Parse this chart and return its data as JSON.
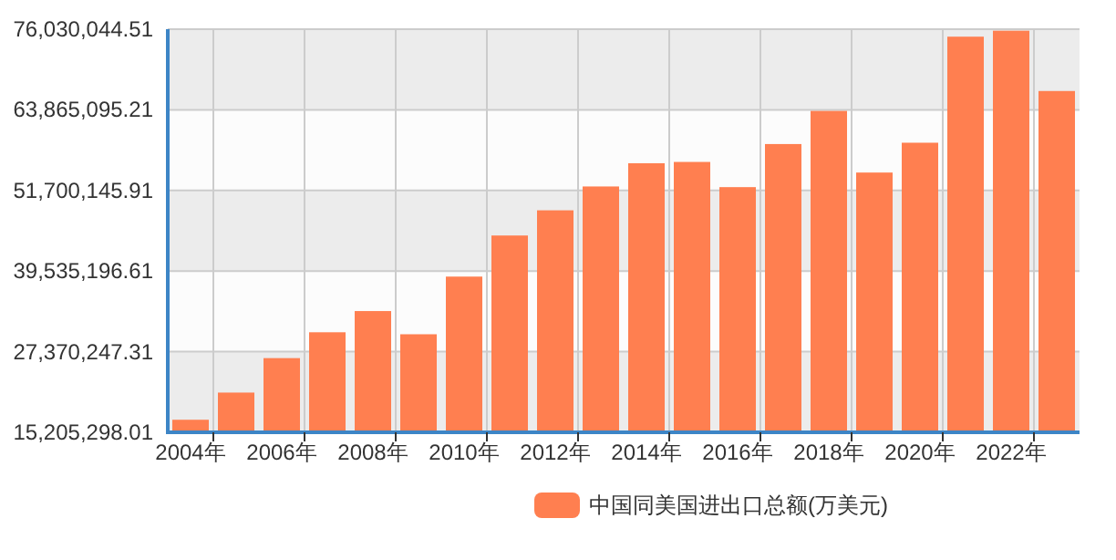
{
  "chart_data": {
    "type": "bar",
    "categories": [
      "2004年",
      null,
      "2006年",
      null,
      "2008年",
      null,
      "2010年",
      null,
      "2012年",
      null,
      "2014年",
      null,
      "2016年",
      null,
      "2018年",
      null,
      "2020年",
      null,
      "2022年",
      null
    ],
    "series": [
      {
        "name": "中国同美国进出口总额(万美元)",
        "color": "#ff7f50",
        "values": [
          17100000,
          21200000,
          26400000,
          30300000,
          33500000,
          30000000,
          38700000,
          44900000,
          48700000,
          52300000,
          55800000,
          56000000,
          52200000,
          58700000,
          63700000,
          54400000,
          58900000,
          74900000,
          75800000,
          66700000
        ]
      }
    ],
    "ylim": [
      15205298.01,
      76030044.51
    ],
    "yticks": [
      {
        "value": 15205298.01,
        "label": "15,205,298.01"
      },
      {
        "value": 27370247.31,
        "label": "27,370,247.31"
      },
      {
        "value": 39535196.61,
        "label": "39,535,196.61"
      },
      {
        "value": 51700145.91,
        "label": "51,700,145.91"
      },
      {
        "value": 63865095.21,
        "label": "63,865,095.21"
      },
      {
        "value": 76030044.51,
        "label": "76,030,044.51"
      }
    ],
    "grid": true,
    "legend": "bottom"
  }
}
